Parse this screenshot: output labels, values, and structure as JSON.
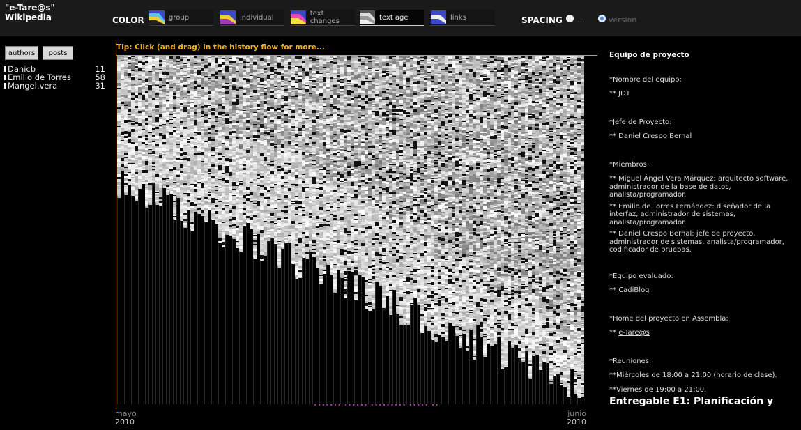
{
  "app": {
    "title": "\"e-Tare@s\"\nWikipedia"
  },
  "header": {
    "color_label": "COLOR",
    "modes": [
      {
        "label": "group",
        "icon": "group-icon"
      },
      {
        "label": "individual",
        "icon": "individual-icon"
      },
      {
        "label": "text changes",
        "icon": "text-changes-icon"
      },
      {
        "label": "text age",
        "icon": "text-age-icon",
        "selected": true
      },
      {
        "label": "links",
        "icon": "links-icon"
      }
    ],
    "spacing_label": "SPACING",
    "spacing_options": [
      {
        "label": "...",
        "selected": false
      },
      {
        "label": "version",
        "selected": true
      }
    ]
  },
  "left_panel": {
    "buttons": [
      "authors",
      "posts"
    ],
    "authors": [
      {
        "name": "Danicb",
        "count": "11"
      },
      {
        "name": "Emilio de Torres",
        "count": "58"
      },
      {
        "name": "Mangel.vera",
        "count": "31"
      }
    ]
  },
  "chart": {
    "tip": "Tip: Click (and drag) in the history flow for more...",
    "start_month": "mayo",
    "start_year": "2010",
    "end_month": "junio",
    "end_year": "2010",
    "markers": "•••••••     ••••••    •••••••••      ••••• ••"
  },
  "right_panel": {
    "title": "Equipo de proyecto",
    "team_name_label": "*Nombre del equipo:",
    "team_name": "** JDT",
    "manager_label": "*Jefe de Proyecto:",
    "manager": "** Daniel Crespo Bernal",
    "members_label": "*Miembros:",
    "member1": "** Miguel Ángel Vera Márquez: arquitecto software, administrador de la base de datos, analista/programador.",
    "member2": "** Emilio de Torres Fernández: diseñador de la interfaz, administrador de sistemas, analista/programador.",
    "member3": "** Daniel Crespo Bernal: jefe de proyecto, administrador de sistemas, analista/programador, codificador de pruebas.",
    "evaluated_label": "*Equipo evaluado:",
    "evaluated_prefix": "** ",
    "evaluated_link": "CadiBlog",
    "home_label": "*Home del proyecto en Assembla:",
    "home_prefix": "** ",
    "home_link": "e-Tare@s",
    "meetings_label": "*Reuniones:",
    "meeting1": "**Miércoles de 18:00 a 21:00 (horario de clase).",
    "meeting2": "**Viernes de 19:00 a 21:00.",
    "deliverable": "Entregable E1: Planificación y"
  },
  "colors": {
    "accent": "#f0b020",
    "axis": "#d4a020",
    "selected_radio": "#4d8fe0"
  }
}
